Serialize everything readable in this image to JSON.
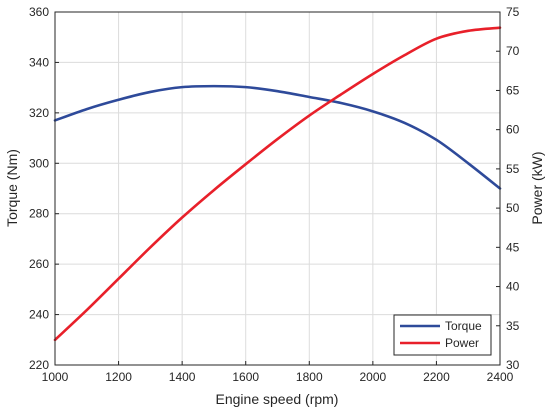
{
  "chart_data": {
    "type": "line",
    "title": "",
    "xlabel": "Engine speed (rpm)",
    "ylabel_left": "Torque (Nm)",
    "ylabel_right": "Power (kW)",
    "xlim": [
      1000,
      2400
    ],
    "ylim_left": [
      220,
      360
    ],
    "ylim_right": [
      30,
      75
    ],
    "x_ticks": [
      1000,
      1200,
      1400,
      1600,
      1800,
      2000,
      2200,
      2400
    ],
    "y_left_ticks": [
      220,
      240,
      260,
      280,
      300,
      320,
      340,
      360
    ],
    "y_right_ticks": [
      30,
      35,
      40,
      45,
      50,
      55,
      60,
      65,
      70,
      75
    ],
    "grid": true,
    "legend_position": "bottom-right",
    "series": [
      {
        "name": "Torque",
        "axis": "left",
        "color": "#2E4A9A",
        "x": [
          1000,
          1100,
          1200,
          1300,
          1400,
          1500,
          1600,
          1700,
          1800,
          1900,
          2000,
          2100,
          2200,
          2300,
          2400
        ],
        "y": [
          317,
          321.5,
          325.2,
          328.3,
          330.2,
          330.6,
          330.2,
          328.6,
          326.3,
          323.9,
          320.6,
          316.0,
          309.3,
          300.0,
          290.0
        ]
      },
      {
        "name": "Power",
        "axis": "right",
        "color": "#E8202A",
        "x": [
          1000,
          1100,
          1200,
          1300,
          1400,
          1500,
          1600,
          1700,
          1800,
          1900,
          2000,
          2100,
          2200,
          2300,
          2400
        ],
        "y": [
          33.2,
          37.0,
          41.0,
          45.0,
          48.8,
          52.3,
          55.6,
          58.8,
          61.8,
          64.5,
          67.1,
          69.5,
          71.6,
          72.6,
          73.0
        ]
      }
    ]
  }
}
